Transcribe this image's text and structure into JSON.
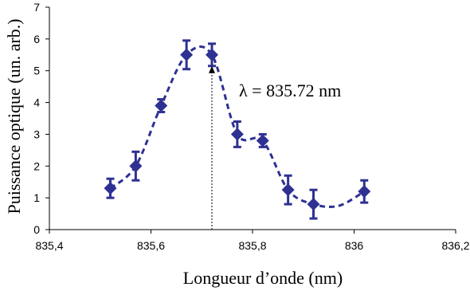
{
  "chart_data": {
    "type": "scatter",
    "title": "",
    "xlabel": "Longueur d’onde (nm)",
    "ylabel": "Puissance optique (un. arb.)",
    "xlim": [
      835.4,
      836.2
    ],
    "ylim": [
      0,
      7
    ],
    "x_ticks": [
      835.4,
      835.6,
      835.8,
      836,
      836.2
    ],
    "x_tick_labels": [
      "835,4",
      "835,6",
      "835,8",
      "836",
      "836,2"
    ],
    "y_ticks": [
      0,
      1,
      2,
      3,
      4,
      5,
      6,
      7
    ],
    "y_tick_labels": [
      "0",
      "1",
      "2",
      "3",
      "4",
      "5",
      "6",
      "7"
    ],
    "grid": false,
    "series": [
      {
        "style": "diamond markers with error bars and dashed fit curve",
        "color": "#2e3192",
        "points": [
          {
            "x": 835.52,
            "y": 1.3,
            "err": 0.3
          },
          {
            "x": 835.57,
            "y": 2.0,
            "err": 0.45
          },
          {
            "x": 835.62,
            "y": 3.9,
            "err": 0.2
          },
          {
            "x": 835.67,
            "y": 5.5,
            "err": 0.45
          },
          {
            "x": 835.72,
            "y": 5.5,
            "err": 0.35
          },
          {
            "x": 835.77,
            "y": 3.0,
            "err": 0.4
          },
          {
            "x": 835.82,
            "y": 2.8,
            "err": 0.2
          },
          {
            "x": 835.87,
            "y": 1.25,
            "err": 0.45
          },
          {
            "x": 835.92,
            "y": 0.8,
            "err": 0.45
          },
          {
            "x": 836.02,
            "y": 1.2,
            "err": 0.35
          }
        ],
        "fit_curve": [
          [
            835.52,
            1.3
          ],
          [
            835.57,
            2.0
          ],
          [
            835.62,
            3.9
          ],
          [
            835.67,
            5.5
          ],
          [
            835.72,
            5.5
          ],
          [
            835.77,
            3.0
          ],
          [
            835.82,
            2.8
          ],
          [
            835.87,
            1.25
          ],
          [
            835.92,
            0.8
          ],
          [
            835.97,
            0.75
          ],
          [
            836.02,
            1.2
          ]
        ]
      }
    ],
    "annotation": {
      "text": "λ = 835.72 nm",
      "arrow_x": 835.72
    }
  }
}
